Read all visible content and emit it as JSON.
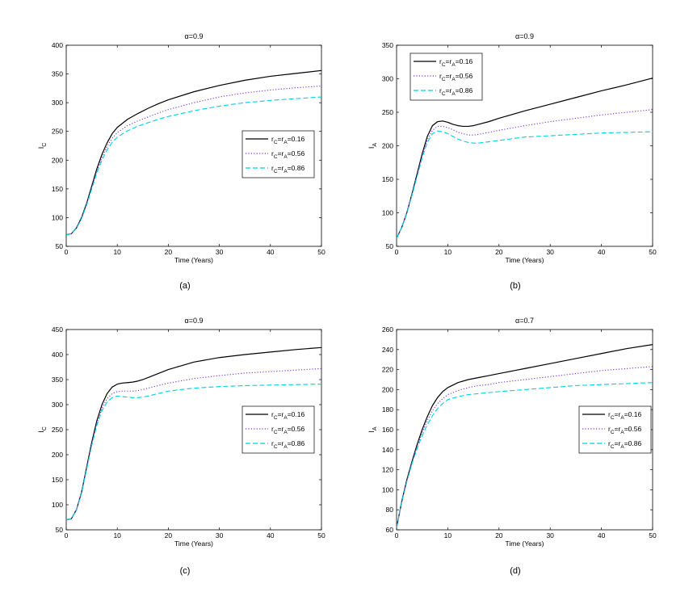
{
  "chart_data": [
    {
      "type": "line",
      "title": "α=0.9",
      "xlabel": "Time (Years)",
      "ylabel": "I",
      "ylabel_sub": "C",
      "caption": "(a)",
      "xlim": [
        0,
        50
      ],
      "ylim": [
        50,
        400
      ],
      "xticks": [
        0,
        10,
        20,
        30,
        40,
        50
      ],
      "yticks": [
        50,
        100,
        150,
        200,
        250,
        300,
        350,
        400
      ],
      "legend_position": "right-middle",
      "grid": false,
      "series": [
        {
          "style": "solid",
          "color": "#000000",
          "x": [
            0,
            1,
            2,
            3,
            4,
            5,
            6,
            7,
            8,
            9,
            10,
            12,
            14,
            16,
            18,
            20,
            25,
            30,
            35,
            40,
            45,
            50
          ],
          "y": [
            70,
            72,
            82,
            100,
            125,
            155,
            185,
            210,
            230,
            246,
            257,
            271,
            281,
            290,
            298,
            305,
            319,
            330,
            339,
            346,
            351,
            356
          ]
        },
        {
          "style": "dotted",
          "color": "#7b2fd6",
          "x": [
            0,
            1,
            2,
            3,
            4,
            5,
            6,
            7,
            8,
            9,
            10,
            12,
            14,
            16,
            18,
            20,
            25,
            30,
            35,
            40,
            45,
            50
          ],
          "y": [
            70,
            72,
            82,
            99,
            124,
            153,
            181,
            205,
            224,
            238,
            248,
            260,
            268,
            275,
            282,
            288,
            300,
            310,
            317,
            322,
            326,
            329
          ]
        },
        {
          "style": "dashed",
          "color": "#00d0e0",
          "x": [
            0,
            1,
            2,
            3,
            4,
            5,
            6,
            7,
            8,
            9,
            10,
            12,
            14,
            16,
            18,
            20,
            25,
            30,
            35,
            40,
            45,
            50
          ],
          "y": [
            70,
            72,
            81,
            98,
            122,
            150,
            178,
            200,
            218,
            231,
            240,
            251,
            259,
            265,
            271,
            276,
            286,
            294,
            300,
            304,
            307,
            310
          ]
        }
      ]
    },
    {
      "type": "line",
      "title": "α=0.9",
      "xlabel": "Time (Years)",
      "ylabel": "I",
      "ylabel_sub": "A",
      "caption": "(b)",
      "xlim": [
        0,
        50
      ],
      "ylim": [
        50,
        350
      ],
      "xticks": [
        0,
        10,
        20,
        30,
        40,
        50
      ],
      "yticks": [
        50,
        100,
        150,
        200,
        250,
        300,
        350
      ],
      "legend_position": "top-left",
      "grid": false,
      "series": [
        {
          "style": "solid",
          "color": "#000000",
          "x": [
            0,
            1,
            2,
            3,
            4,
            5,
            6,
            7,
            8,
            9,
            10,
            11,
            12,
            13,
            14,
            15,
            16,
            18,
            20,
            25,
            30,
            35,
            40,
            45,
            50
          ],
          "y": [
            62,
            78,
            100,
            128,
            158,
            188,
            214,
            230,
            236,
            237,
            235,
            232,
            230,
            229,
            229,
            230,
            232,
            236,
            241,
            252,
            262,
            272,
            282,
            291,
            301
          ]
        },
        {
          "style": "dotted",
          "color": "#7b2fd6",
          "x": [
            0,
            1,
            2,
            3,
            4,
            5,
            6,
            7,
            8,
            9,
            10,
            11,
            12,
            13,
            14,
            15,
            16,
            18,
            20,
            25,
            30,
            35,
            40,
            45,
            50
          ],
          "y": [
            62,
            78,
            100,
            127,
            156,
            185,
            209,
            223,
            229,
            229,
            227,
            224,
            220,
            218,
            216,
            216,
            217,
            220,
            223,
            230,
            236,
            241,
            246,
            250,
            254
          ]
        },
        {
          "style": "dashed",
          "color": "#00d0e0",
          "x": [
            0,
            1,
            2,
            3,
            4,
            5,
            6,
            7,
            8,
            9,
            10,
            11,
            12,
            13,
            14,
            15,
            16,
            18,
            20,
            25,
            30,
            35,
            40,
            45,
            50
          ],
          "y": [
            62,
            78,
            99,
            126,
            154,
            182,
            205,
            218,
            222,
            221,
            218,
            214,
            210,
            207,
            205,
            204,
            204,
            206,
            208,
            213,
            215,
            217,
            219,
            220,
            221
          ]
        }
      ]
    },
    {
      "type": "line",
      "title": "α=0.9",
      "xlabel": "Time (Years)",
      "ylabel": "I",
      "ylabel_sub": "C",
      "caption": "(c)",
      "xlim": [
        0,
        50
      ],
      "ylim": [
        50,
        450
      ],
      "xticks": [
        0,
        10,
        20,
        30,
        40,
        50
      ],
      "yticks": [
        50,
        100,
        150,
        200,
        250,
        300,
        350,
        400,
        450
      ],
      "legend_position": "right-middle",
      "grid": false,
      "series": [
        {
          "style": "solid",
          "color": "#000000",
          "x": [
            0,
            1,
            2,
            3,
            4,
            5,
            6,
            7,
            8,
            9,
            10,
            11,
            12,
            13,
            14,
            15,
            16,
            18,
            20,
            25,
            30,
            35,
            40,
            45,
            50
          ],
          "y": [
            70,
            72,
            90,
            125,
            175,
            225,
            268,
            300,
            322,
            335,
            341,
            343,
            344,
            345,
            347,
            350,
            354,
            362,
            370,
            385,
            394,
            400,
            405,
            410,
            414
          ]
        },
        {
          "style": "dotted",
          "color": "#7b2fd6",
          "x": [
            0,
            1,
            2,
            3,
            4,
            5,
            6,
            7,
            8,
            9,
            10,
            11,
            12,
            13,
            14,
            15,
            16,
            18,
            20,
            25,
            30,
            35,
            40,
            45,
            50
          ],
          "y": [
            70,
            72,
            90,
            124,
            173,
            222,
            263,
            293,
            312,
            322,
            326,
            327,
            327,
            327,
            328,
            330,
            333,
            338,
            343,
            352,
            358,
            363,
            366,
            369,
            372
          ]
        },
        {
          "style": "dashed",
          "color": "#00d0e0",
          "x": [
            0,
            1,
            2,
            3,
            4,
            5,
            6,
            7,
            8,
            9,
            10,
            11,
            12,
            13,
            14,
            15,
            16,
            18,
            20,
            25,
            30,
            35,
            40,
            45,
            50
          ],
          "y": [
            70,
            72,
            89,
            123,
            171,
            219,
            259,
            288,
            305,
            314,
            317,
            316,
            315,
            314,
            314,
            315,
            317,
            322,
            327,
            333,
            336,
            338,
            339,
            340,
            341
          ]
        }
      ]
    },
    {
      "type": "line",
      "title": "α=0.7",
      "xlabel": "Time (Years)",
      "ylabel": "I",
      "ylabel_sub": "A",
      "caption": "(d)",
      "xlim": [
        0,
        50
      ],
      "ylim": [
        60,
        260
      ],
      "xticks": [
        0,
        10,
        20,
        30,
        40,
        50
      ],
      "yticks": [
        60,
        80,
        100,
        120,
        140,
        160,
        180,
        200,
        220,
        240,
        260
      ],
      "legend_position": "right-middle",
      "grid": false,
      "series": [
        {
          "style": "solid",
          "color": "#000000",
          "x": [
            0,
            1,
            2,
            3,
            4,
            5,
            6,
            7,
            8,
            9,
            10,
            12,
            14,
            16,
            18,
            20,
            25,
            30,
            35,
            40,
            45,
            50
          ],
          "y": [
            62,
            88,
            110,
            128,
            145,
            160,
            173,
            184,
            192,
            198,
            202,
            207,
            210,
            212,
            214,
            216,
            221,
            226,
            231,
            236,
            241,
            245
          ]
        },
        {
          "style": "dotted",
          "color": "#7b2fd6",
          "x": [
            0,
            1,
            2,
            3,
            4,
            5,
            6,
            7,
            8,
            9,
            10,
            12,
            14,
            16,
            18,
            20,
            25,
            30,
            35,
            40,
            45,
            50
          ],
          "y": [
            62,
            88,
            109,
            127,
            143,
            157,
            169,
            179,
            186,
            191,
            195,
            199,
            202,
            204,
            205,
            207,
            210,
            213,
            216,
            219,
            221,
            223
          ]
        },
        {
          "style": "dashed",
          "color": "#00d0e0",
          "x": [
            0,
            1,
            2,
            3,
            4,
            5,
            6,
            7,
            8,
            9,
            10,
            12,
            14,
            16,
            18,
            20,
            25,
            30,
            35,
            40,
            45,
            50
          ],
          "y": [
            62,
            87,
            108,
            126,
            141,
            154,
            165,
            174,
            181,
            186,
            190,
            193,
            195,
            196,
            197,
            198,
            200,
            202,
            204,
            205,
            206,
            207
          ]
        }
      ]
    }
  ],
  "legend": {
    "entries": [
      {
        "r": "r",
        "sub1": "C",
        "eq": "=r",
        "sub2": "A",
        "val": "=0.16"
      },
      {
        "r": "r",
        "sub1": "C",
        "eq": "=r",
        "sub2": "A",
        "val": "=0.56"
      },
      {
        "r": "r",
        "sub1": "C",
        "eq": "=r",
        "sub2": "A",
        "val": "=0.86"
      }
    ]
  }
}
